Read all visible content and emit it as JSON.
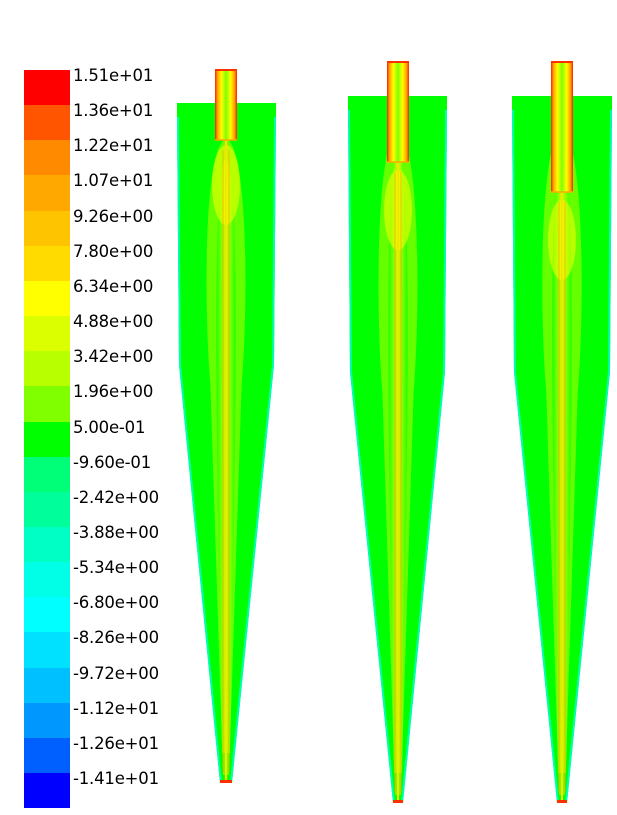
{
  "legend": {
    "colormap_name": "contour-legend",
    "entries": [
      {
        "label": "1.51e+01",
        "color": "#ff0000"
      },
      {
        "label": "1.36e+01",
        "color": "#ff5500"
      },
      {
        "label": "1.22e+01",
        "color": "#ff8a00"
      },
      {
        "label": "1.07e+01",
        "color": "#ffa800"
      },
      {
        "label": "9.26e+00",
        "color": "#ffc400"
      },
      {
        "label": "7.80e+00",
        "color": "#ffdb00"
      },
      {
        "label": "6.34e+00",
        "color": "#ffff00"
      },
      {
        "label": "4.88e+00",
        "color": "#dcff00"
      },
      {
        "label": "3.42e+00",
        "color": "#b8ff00"
      },
      {
        "label": "1.96e+00",
        "color": "#80ff00"
      },
      {
        "label": "5.00e-01",
        "color": "#00ff00"
      },
      {
        "label": "-9.60e-01",
        "color": "#00ff78"
      },
      {
        "label": "-2.42e+00",
        "color": "#00ff9a"
      },
      {
        "label": "-3.88e+00",
        "color": "#00ffc4"
      },
      {
        "label": "-5.34e+00",
        "color": "#00ffe6"
      },
      {
        "label": "-6.80e+00",
        "color": "#00ffff"
      },
      {
        "label": "-8.26e+00",
        "color": "#00e0ff"
      },
      {
        "label": "-9.72e+00",
        "color": "#00c0ff"
      },
      {
        "label": "-1.12e+01",
        "color": "#0098ff"
      },
      {
        "label": "-1.26e+01",
        "color": "#0060ff"
      },
      {
        "label": "-1.41e+01",
        "color": "#0000ff"
      }
    ]
  },
  "colors": {
    "background": "#ffffff",
    "body_fill": "#00ff00",
    "wall_edge": "#00ffb0",
    "core_high": "#ffff00",
    "core_mid": "#b8ff00",
    "axis_line": "#ffe000",
    "pipe_edge": "#ff3000"
  },
  "plots": [
    {
      "name": "contour-plot-1"
    },
    {
      "name": "contour-plot-2"
    },
    {
      "name": "contour-plot-3"
    }
  ]
}
